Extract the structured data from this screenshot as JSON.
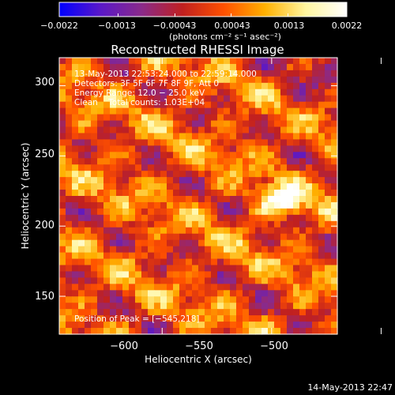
{
  "chart_data": {
    "type": "heatmap",
    "title": "Reconstructed RHESSI Image",
    "xlabel": "Heliocentric X (arcsec)",
    "ylabel": "Heliocentric Y (arcsec)",
    "xlim": [
      -647,
      -520
    ],
    "ylim": [
      123,
      320
    ],
    "x_ticks": [
      -600,
      -550,
      -500
    ],
    "y_ticks": [
      150,
      200,
      250,
      300
    ],
    "x_tick_labels": [
      "−600",
      "−550",
      "−500"
    ],
    "y_tick_labels": [
      "150",
      "200",
      "250",
      "300"
    ],
    "grid": false,
    "colorbar": {
      "range": [
        -0.0022,
        0.0022
      ],
      "tick_values": [
        -0.0022,
        -0.0013,
        -0.00043,
        0.00043,
        0.0013,
        0.0022
      ],
      "tick_labels": [
        "−0.0022",
        "−0.0013",
        "−0.00043",
        "0.00043",
        "0.0013",
        "0.0022"
      ],
      "unit_label": "(photons cm⁻² s⁻¹ asec⁻²)",
      "colors": [
        "#0000ff",
        "#5a18c8",
        "#8a2a8a",
        "#c02020",
        "#ff5000",
        "#ffb000",
        "#fff6a0",
        "#ffffff"
      ]
    },
    "peak": {
      "x": -545,
      "y": 218,
      "value": 0.0022
    },
    "annotations": [
      "13-May-2013 22:53:24.000 to 22:59:14.000",
      "Detectors: 3F 5F 6F 7F 8F 9F, Att 0",
      "Energy Range: 12.0 − 25.0 keV",
      "Clean    Total counts: 1.03E+04"
    ],
    "peak_label": "Position of Peak = [−545,218]"
  },
  "footer_timestamp": "14-May-2013 22:47"
}
